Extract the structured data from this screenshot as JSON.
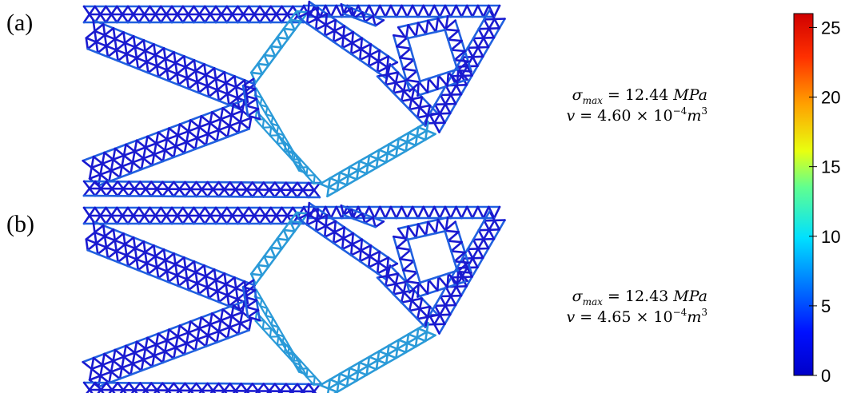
{
  "panels": [
    {
      "label": "(a)",
      "sigma_symbol": "σ",
      "sigma_sub": "max",
      "sigma_value": "= 12.44",
      "sigma_unit": "MPa",
      "volume_symbol": "v",
      "volume_value": "= 4.60 × 10",
      "volume_exp": "−4",
      "volume_unit": "m",
      "volume_unit_exp": "3"
    },
    {
      "label": "(b)",
      "sigma_symbol": "σ",
      "sigma_sub": "max",
      "sigma_value": "= 12.43",
      "sigma_unit": "MPa",
      "volume_symbol": "v",
      "volume_value": "= 4.65 × 10",
      "volume_exp": "−4",
      "volume_unit": "m",
      "volume_unit_exp": "3"
    }
  ],
  "colorbar": {
    "range": [
      0,
      26
    ],
    "ticks": [
      0,
      5,
      10,
      15,
      20,
      25
    ]
  }
}
